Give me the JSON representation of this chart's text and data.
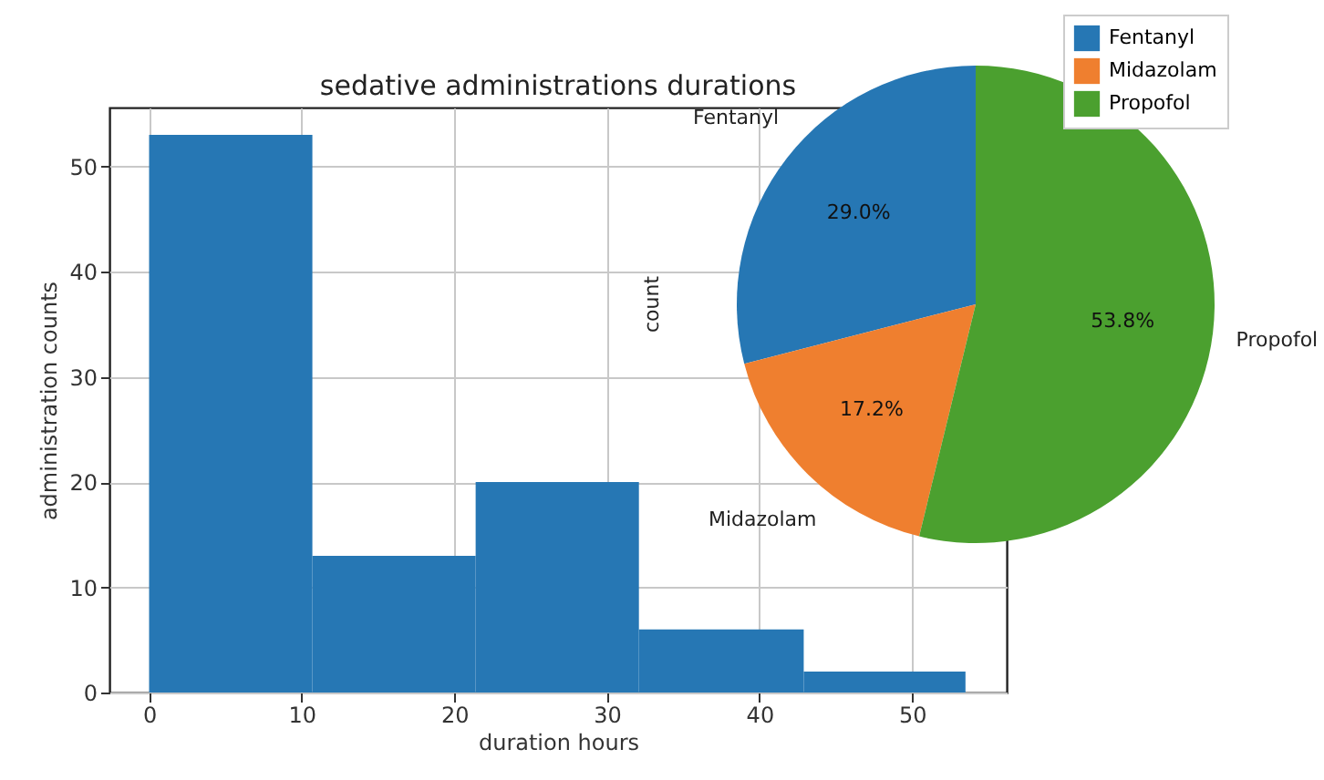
{
  "chart_data": [
    {
      "type": "histogram",
      "title": "sedative administrations durations",
      "xlabel": "duration hours",
      "ylabel": "administration counts",
      "bins": [
        0,
        10.7,
        21.4,
        32.1,
        42.9,
        53.5
      ],
      "values": [
        53,
        13,
        20,
        6,
        2
      ],
      "color": "#2677b4",
      "xlim": [
        -2.6,
        56.2
      ],
      "ylim": [
        0,
        55.6
      ],
      "xticks": [
        0,
        10,
        20,
        30,
        40,
        50
      ],
      "yticks": [
        0,
        10,
        20,
        30,
        40,
        50
      ],
      "grid": true
    },
    {
      "type": "pie",
      "ylabel": "count",
      "categories": [
        "Fentanyl",
        "Midazolam",
        "Propofol"
      ],
      "values": [
        29.0,
        17.2,
        53.8
      ],
      "colors": [
        "#2677b4",
        "#ef7f2f",
        "#4ba02f"
      ],
      "value_labels": [
        "29.0%",
        "17.2%",
        "53.8%"
      ],
      "legend": "top right"
    }
  ]
}
